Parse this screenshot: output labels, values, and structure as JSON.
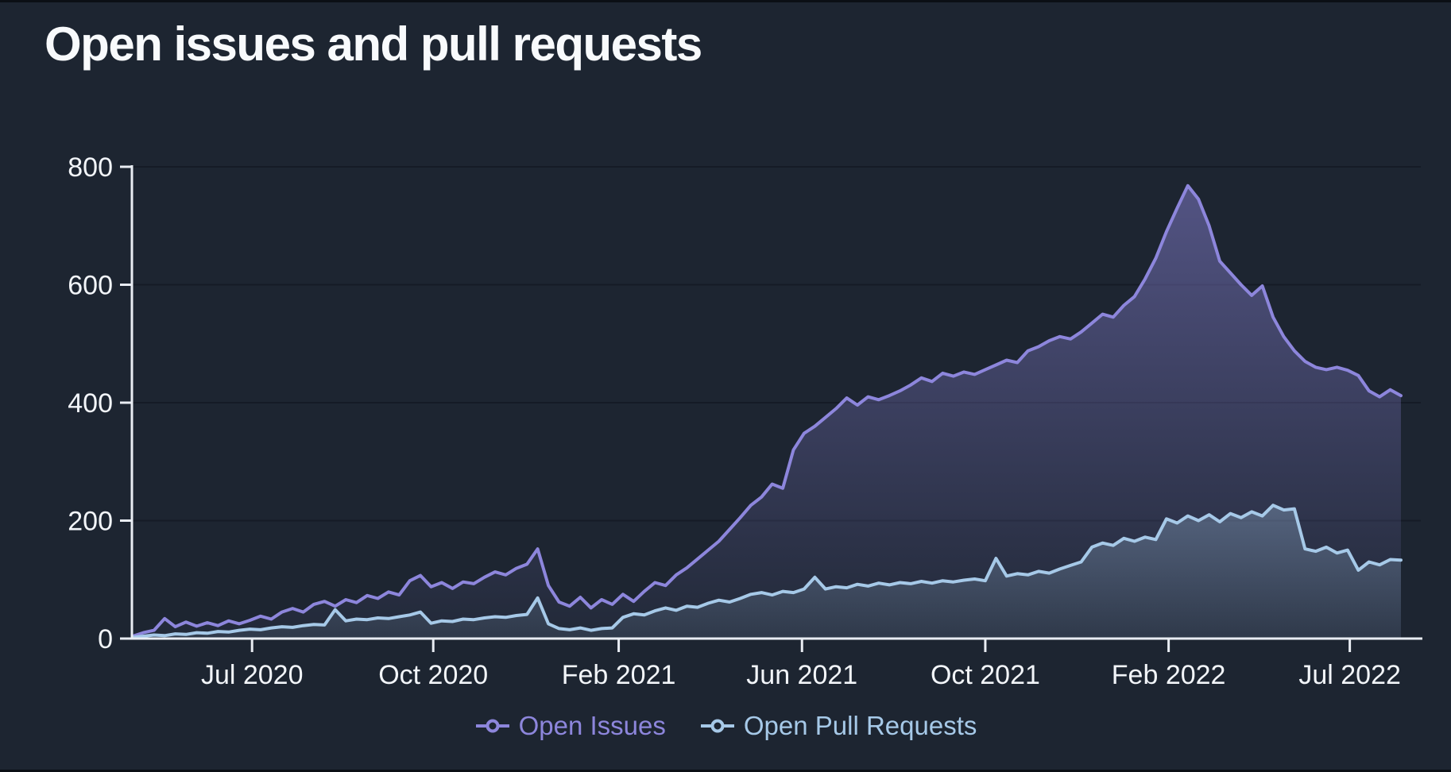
{
  "chart_data": {
    "type": "area",
    "title": "Open issues and pull requests",
    "grid": "horizontal",
    "legend_position": "bottom-center",
    "x_axis": {
      "kind": "time (weekly points)",
      "tick_labels": [
        "Jul 2020",
        "Oct 2020",
        "Feb 2021",
        "Jun 2021",
        "Oct 2021",
        "Feb 2022",
        "Jul 2022"
      ],
      "tick_indices": [
        11.2,
        28.2,
        45.6,
        62.8,
        80.0,
        97.2,
        114.2
      ]
    },
    "y_axis": {
      "ticks": [
        0,
        200,
        400,
        600,
        800
      ],
      "range": [
        0,
        800
      ]
    },
    "n_points": 120,
    "series": [
      {
        "name": "Open Issues",
        "color_key": "purple",
        "values": [
          4,
          10,
          14,
          34,
          20,
          28,
          21,
          27,
          22,
          30,
          25,
          31,
          38,
          33,
          45,
          51,
          45,
          58,
          63,
          55,
          66,
          61,
          73,
          68,
          79,
          74,
          98,
          107,
          88,
          95,
          85,
          96,
          93,
          104,
          113,
          108,
          119,
          126,
          152,
          90,
          62,
          55,
          70,
          52,
          66,
          58,
          75,
          63,
          80,
          95,
          90,
          108,
          120,
          135,
          150,
          165,
          185,
          205,
          226,
          240,
          262,
          255,
          320,
          348,
          360,
          375,
          390,
          408,
          396,
          410,
          405,
          412,
          420,
          430,
          442,
          436,
          450,
          445,
          452,
          448,
          456,
          464,
          472,
          468,
          488,
          495,
          505,
          512,
          508,
          520,
          535,
          550,
          545,
          565,
          580,
          610,
          645,
          690,
          730,
          768,
          745,
          700,
          640,
          620,
          600,
          582,
          598,
          545,
          512,
          488,
          470,
          460,
          456,
          460,
          455,
          446,
          420,
          410,
          422,
          412
        ]
      },
      {
        "name": "Open Pull Requests",
        "color_key": "blue",
        "values": [
          2,
          4,
          6,
          5,
          8,
          7,
          10,
          9,
          12,
          11,
          14,
          16,
          15,
          18,
          20,
          19,
          22,
          24,
          23,
          49,
          30,
          33,
          32,
          35,
          34,
          37,
          40,
          45,
          26,
          30,
          29,
          33,
          32,
          35,
          37,
          36,
          39,
          41,
          69,
          25,
          17,
          15,
          18,
          14,
          17,
          18,
          36,
          42,
          40,
          47,
          52,
          48,
          55,
          53,
          60,
          65,
          62,
          68,
          75,
          78,
          74,
          80,
          78,
          84,
          104,
          84,
          88,
          86,
          92,
          89,
          94,
          91,
          95,
          93,
          97,
          94,
          98,
          96,
          99,
          101,
          98,
          136,
          106,
          110,
          108,
          114,
          111,
          118,
          124,
          130,
          155,
          162,
          158,
          170,
          165,
          172,
          168,
          203,
          196,
          208,
          200,
          210,
          198,
          212,
          205,
          215,
          208,
          226,
          218,
          220,
          152,
          148,
          155,
          145,
          150,
          116,
          130,
          125,
          134,
          133
        ]
      }
    ]
  },
  "colors": {
    "panel_background": "#1d2531",
    "edge_strip": "#0b0f15",
    "gridline": "#151b26",
    "axis": "#e9edf3",
    "label_text": "#f2f5f9",
    "title_text": "#f8fafc",
    "purple": "#8d86dc",
    "blue": "#a6c9e8"
  },
  "legend": {
    "items": [
      {
        "label": "Open Issues",
        "color_key": "purple"
      },
      {
        "label": "Open Pull Requests",
        "color_key": "blue"
      }
    ]
  }
}
